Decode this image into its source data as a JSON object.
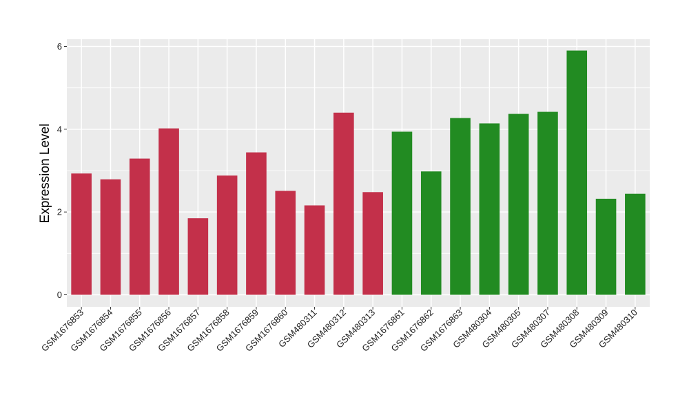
{
  "chart_data": {
    "type": "bar",
    "title": "",
    "xlabel": "",
    "ylabel": "Expression Level",
    "ylim": [
      0,
      6.3
    ],
    "yticks": [
      0,
      2,
      4,
      6
    ],
    "yticks_labels": [
      "0",
      "2",
      "4",
      "6"
    ],
    "grid": true,
    "background": "#EBEBEB",
    "grid_color": "#FFFFFF",
    "categories": [
      "GSM1676853",
      "GSM1676854",
      "GSM1676855",
      "GSM1676856",
      "GSM1676857",
      "GSM1676858",
      "GSM1676859",
      "GSM1676860",
      "GSM480311",
      "GSM480312",
      "GSM480313",
      "GSM1676861",
      "GSM1676862",
      "GSM1676863",
      "GSM480304",
      "GSM480305",
      "GSM480307",
      "GSM480308",
      "GSM480309",
      "GSM480310"
    ],
    "values": [
      2.93,
      2.79,
      3.29,
      4.02,
      1.85,
      2.88,
      3.44,
      2.51,
      2.16,
      4.4,
      2.48,
      3.94,
      2.98,
      4.27,
      4.14,
      4.37,
      4.42,
      5.9,
      2.32,
      2.44
    ],
    "bar_colors": [
      "#C3304A",
      "#C3304A",
      "#C3304A",
      "#C3304A",
      "#C3304A",
      "#C3304A",
      "#C3304A",
      "#C3304A",
      "#C3304A",
      "#C3304A",
      "#C3304A",
      "#228B22",
      "#228B22",
      "#228B22",
      "#228B22",
      "#228B22",
      "#228B22",
      "#228B22",
      "#228B22",
      "#228B22"
    ]
  }
}
